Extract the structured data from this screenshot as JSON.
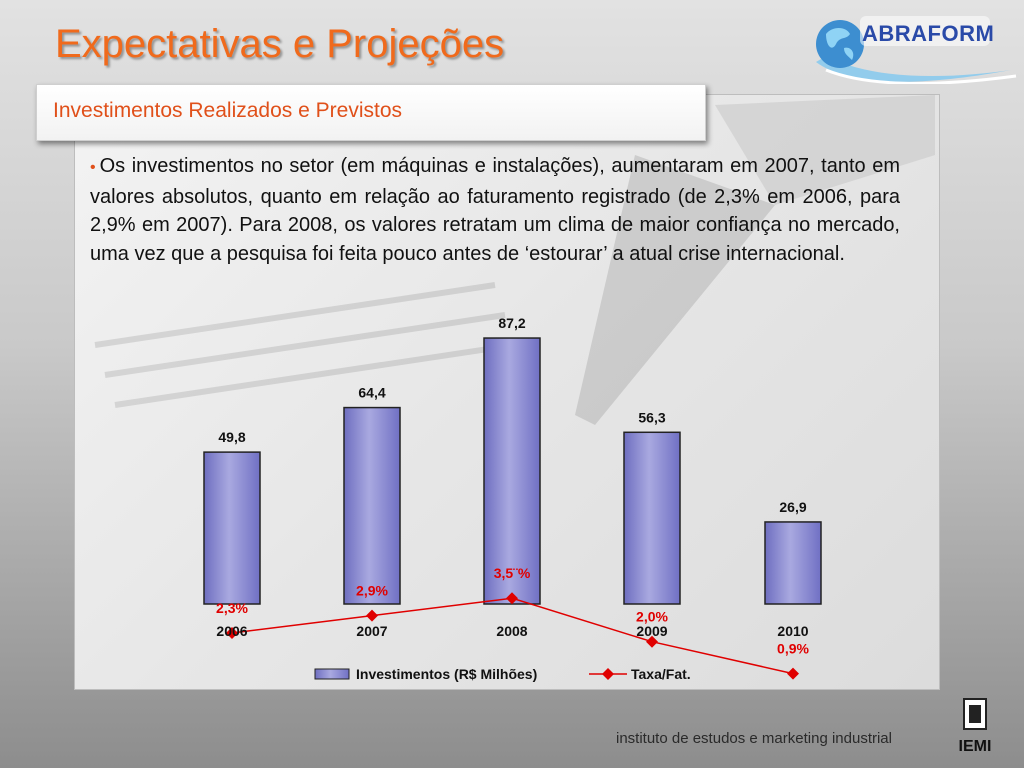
{
  "slide": {
    "title": "Expectativas e Projeções",
    "subtitle": "Investimentos Realizados e Previstos",
    "bullet": "Os investimentos no setor (em máquinas e instalações), aumentaram em 2007, tanto em valores absolutos, quanto em relação ao faturamento registrado (de 2,3% em 2006, para 2,9% em 2007). Para 2008, os valores retratam um clima de maior confiança no mercado, uma vez que a pesquisa foi feita pouco antes de ‘estourar’ a atual crise internacional.",
    "logo_text": "ABRAFORM",
    "footer": "instituto de estudos e marketing industrial",
    "footer_logo_text": "IEMI"
  },
  "colors": {
    "title": "#f06a1c",
    "bar_fill": "#a9a9e0",
    "line": "#e00000",
    "accent": "#e0501a"
  },
  "chart_data": {
    "type": "bar",
    "categories": [
      "2006",
      "2007",
      "2008",
      "2009",
      "2010"
    ],
    "series": [
      {
        "name": "Investimentos (R$ Milhões)",
        "type": "bar",
        "values": [
          49.8,
          64.4,
          87.2,
          56.3,
          26.9
        ],
        "labels": [
          "49,8",
          "64,4",
          "87,2",
          "56,3",
          "26,9"
        ]
      },
      {
        "name": "Taxa/Fat.",
        "type": "line",
        "values": [
          2.3,
          2.9,
          3.5,
          2.0,
          0.9
        ],
        "labels": [
          "2,3%",
          "2,9%",
          "3,5¨%",
          "2,0%",
          "0,9%"
        ]
      }
    ],
    "legend_position": "bottom",
    "grid": false
  }
}
